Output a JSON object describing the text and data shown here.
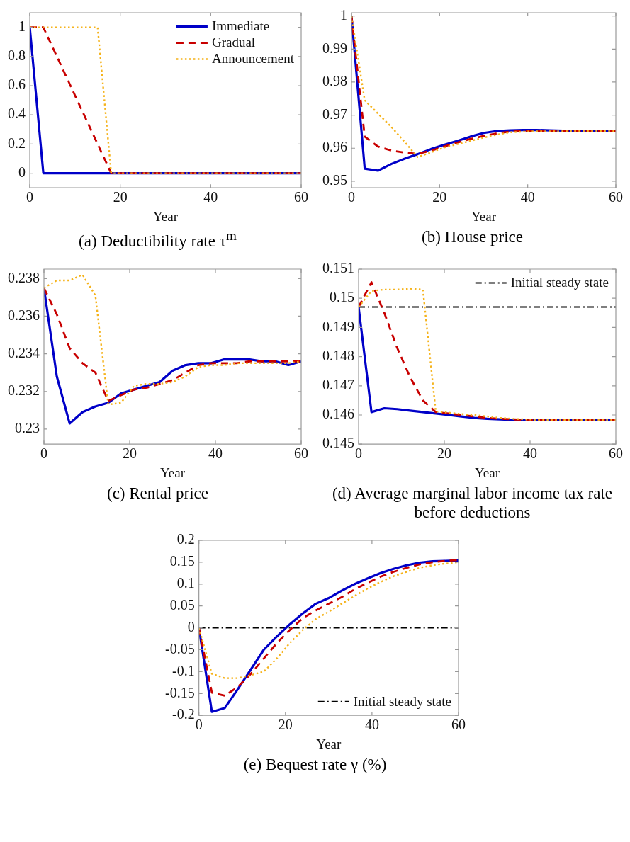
{
  "chart_data": [
    {
      "type": "line",
      "title": "(a) Deductibility rate τ$^{m}$",
      "xlabel": "Year",
      "x": [
        0,
        3,
        6,
        9,
        12,
        15,
        18,
        21,
        24,
        27,
        30,
        33,
        36,
        39,
        42,
        45,
        48,
        51,
        54,
        57,
        60
      ],
      "xlim": [
        0,
        60
      ],
      "xticks": [
        0,
        20,
        40,
        60
      ],
      "ylim": [
        -0.1,
        1.1
      ],
      "yticks": [
        0,
        0.2,
        0.4,
        0.6,
        0.8,
        1
      ],
      "legend": "top right",
      "series": [
        {
          "name": "Immediate",
          "color": "#0000c8",
          "line_style": "solid",
          "values": [
            1,
            0,
            0,
            0,
            0,
            0,
            0,
            0,
            0,
            0,
            0,
            0,
            0,
            0,
            0,
            0,
            0,
            0,
            0,
            0,
            0
          ]
        },
        {
          "name": "Gradual",
          "color": "#c80000",
          "line_style": "dashed",
          "values": [
            1,
            1,
            0.8,
            0.6,
            0.4,
            0.2,
            0,
            0,
            0,
            0,
            0,
            0,
            0,
            0,
            0,
            0,
            0,
            0,
            0,
            0,
            0
          ]
        },
        {
          "name": "Announcement",
          "color": "#f5b31c",
          "line_style": "dotted",
          "values": [
            1,
            1,
            1,
            1,
            1,
            1,
            0,
            0,
            0,
            0,
            0,
            0,
            0,
            0,
            0,
            0,
            0,
            0,
            0,
            0,
            0
          ]
        }
      ]
    },
    {
      "type": "line",
      "title": "(b) House price",
      "xlabel": "Year",
      "x": [
        0,
        3,
        6,
        9,
        12,
        15,
        18,
        21,
        24,
        27,
        30,
        33,
        36,
        39,
        42,
        45,
        48,
        51,
        54,
        57,
        60
      ],
      "xlim": [
        0,
        60
      ],
      "xticks": [
        0,
        20,
        40,
        60
      ],
      "ylim": [
        0.948,
        1.001
      ],
      "yticks": [
        0.95,
        0.96,
        0.97,
        0.98,
        0.99,
        1
      ],
      "series": [
        {
          "color": "#0000c8",
          "line_style": "solid",
          "values": [
            1,
            0.9538,
            0.9532,
            0.9552,
            0.9568,
            0.9582,
            0.9597,
            0.961,
            0.9622,
            0.9635,
            0.9646,
            0.9652,
            0.9654,
            0.9655,
            0.9655,
            0.9654,
            0.9653,
            0.9652,
            0.9651,
            0.9651,
            0.9651
          ]
        },
        {
          "color": "#c80000",
          "line_style": "dashed",
          "values": [
            1,
            0.9635,
            0.9605,
            0.9593,
            0.9587,
            0.9583,
            0.9592,
            0.9605,
            0.9617,
            0.9628,
            0.9637,
            0.9645,
            0.965,
            0.9652,
            0.9653,
            0.9653,
            0.9653,
            0.9653,
            0.9652,
            0.9652,
            0.9652
          ]
        },
        {
          "color": "#f5b31c",
          "line_style": "dotted",
          "values": [
            1,
            0.9745,
            0.9705,
            0.9665,
            0.962,
            0.9573,
            0.9587,
            0.9602,
            0.9612,
            0.9622,
            0.9632,
            0.9641,
            0.9648,
            0.965,
            0.9651,
            0.9651,
            0.9651,
            0.9652,
            0.9652,
            0.9652,
            0.9652
          ]
        }
      ]
    },
    {
      "type": "line",
      "title": "(c) Rental price",
      "xlabel": "Year",
      "x": [
        0,
        3,
        6,
        9,
        12,
        15,
        18,
        21,
        24,
        27,
        30,
        33,
        36,
        39,
        42,
        45,
        48,
        51,
        54,
        57,
        60
      ],
      "xlim": [
        0,
        60
      ],
      "xticks": [
        0,
        20,
        40,
        60
      ],
      "ylim": [
        0.2292,
        0.2385
      ],
      "yticks": [
        0.23,
        0.232,
        0.234,
        0.236,
        0.238
      ],
      "series": [
        {
          "color": "#0000c8",
          "line_style": "solid",
          "values": [
            0.2375,
            0.2328,
            0.2303,
            0.2309,
            0.2312,
            0.2314,
            0.2319,
            0.2321,
            0.2323,
            0.2325,
            0.2331,
            0.2334,
            0.2335,
            0.2335,
            0.2337,
            0.2337,
            0.2337,
            0.2336,
            0.2336,
            0.2334,
            0.2336
          ]
        },
        {
          "color": "#c80000",
          "line_style": "dashed",
          "values": [
            0.2375,
            0.2361,
            0.2343,
            0.2335,
            0.233,
            0.2315,
            0.2318,
            0.2321,
            0.2322,
            0.2324,
            0.2326,
            0.233,
            0.2334,
            0.2335,
            0.2335,
            0.2335,
            0.2336,
            0.2336,
            0.2336,
            0.2336,
            0.2336
          ]
        },
        {
          "color": "#f5b31c",
          "line_style": "dotted",
          "values": [
            0.2375,
            0.2379,
            0.2379,
            0.2382,
            0.2371,
            0.2313,
            0.2314,
            0.2323,
            0.2324,
            0.2324,
            0.2325,
            0.2328,
            0.2333,
            0.2334,
            0.2334,
            0.2335,
            0.2335,
            0.2335,
            0.2335,
            0.2335,
            0.2336
          ]
        }
      ]
    },
    {
      "type": "line",
      "title": "(d) Average marginal labor income tax rate before deductions",
      "xlabel": "Year",
      "x": [
        0,
        3,
        6,
        9,
        12,
        15,
        18,
        21,
        24,
        27,
        30,
        33,
        36,
        39,
        42,
        45,
        48,
        51,
        54,
        57,
        60
      ],
      "xlim": [
        0,
        60
      ],
      "xticks": [
        0,
        20,
        40,
        60
      ],
      "ylim": [
        0.145,
        0.151
      ],
      "yticks": [
        0.145,
        0.146,
        0.147,
        0.148,
        0.149,
        0.15,
        0.151
      ],
      "legend": "top right",
      "ref_lines": [
        {
          "axis": "y",
          "value": 0.1497,
          "label": "Initial steady state",
          "color": "#000000",
          "line_style": "dashdot"
        }
      ],
      "series": [
        {
          "color": "#0000c8",
          "line_style": "solid",
          "values": [
            0.1497,
            0.1461,
            0.14623,
            0.1462,
            0.14615,
            0.1461,
            0.14605,
            0.146,
            0.14595,
            0.1459,
            0.14587,
            0.14585,
            0.14583,
            0.14583,
            0.14583,
            0.14583,
            0.14583,
            0.14583,
            0.14583,
            0.14583,
            0.14583
          ]
        },
        {
          "color": "#c80000",
          "line_style": "dashed",
          "values": [
            0.1497,
            0.15055,
            0.1495,
            0.1483,
            0.1473,
            0.1465,
            0.1461,
            0.14605,
            0.146,
            0.14595,
            0.1459,
            0.14587,
            0.14585,
            0.14583,
            0.14583,
            0.14583,
            0.14583,
            0.14583,
            0.14583,
            0.14583,
            0.14583
          ]
        },
        {
          "color": "#f5b31c",
          "line_style": "dotted",
          "values": [
            0.1497,
            0.15025,
            0.1503,
            0.1503,
            0.15033,
            0.1503,
            0.14612,
            0.14608,
            0.14603,
            0.146,
            0.14595,
            0.1459,
            0.14587,
            0.14585,
            0.14583,
            0.14583,
            0.14583,
            0.14583,
            0.14583,
            0.14583,
            0.14583
          ]
        }
      ]
    },
    {
      "type": "line",
      "title": "(e) Bequest rate γ (%)",
      "xlabel": "Year",
      "x": [
        0,
        3,
        6,
        9,
        12,
        15,
        18,
        21,
        24,
        27,
        30,
        33,
        36,
        39,
        42,
        45,
        48,
        51,
        54,
        57,
        60
      ],
      "xlim": [
        0,
        60
      ],
      "xticks": [
        0,
        20,
        40,
        60
      ],
      "ylim": [
        -0.2,
        0.2
      ],
      "yticks": [
        -0.2,
        -0.15,
        -0.1,
        -0.05,
        0,
        0.05,
        0.1,
        0.15,
        0.2
      ],
      "legend": "bottom right",
      "ref_lines": [
        {
          "axis": "y",
          "value": 0,
          "label": "Initial steady state",
          "color": "#000000",
          "line_style": "dashdot"
        }
      ],
      "series": [
        {
          "color": "#0000c8",
          "line_style": "solid",
          "values": [
            0,
            -0.192,
            -0.183,
            -0.14,
            -0.095,
            -0.05,
            -0.02,
            0.008,
            0.033,
            0.055,
            0.068,
            0.085,
            0.1,
            0.113,
            0.125,
            0.135,
            0.143,
            0.149,
            0.152,
            0.153,
            0.154
          ]
        },
        {
          "color": "#c80000",
          "line_style": "dashed",
          "values": [
            0,
            -0.148,
            -0.155,
            -0.135,
            -0.105,
            -0.07,
            -0.035,
            -0.005,
            0.022,
            0.04,
            0.055,
            0.07,
            0.088,
            0.103,
            0.117,
            0.128,
            0.137,
            0.145,
            0.15,
            0.153,
            0.155
          ]
        },
        {
          "color": "#f5b31c",
          "line_style": "dotted",
          "values": [
            0,
            -0.105,
            -0.115,
            -0.115,
            -0.108,
            -0.1,
            -0.07,
            -0.035,
            -0.005,
            0.02,
            0.037,
            0.055,
            0.073,
            0.09,
            0.105,
            0.118,
            0.128,
            0.137,
            0.143,
            0.147,
            0.15
          ]
        }
      ]
    }
  ]
}
